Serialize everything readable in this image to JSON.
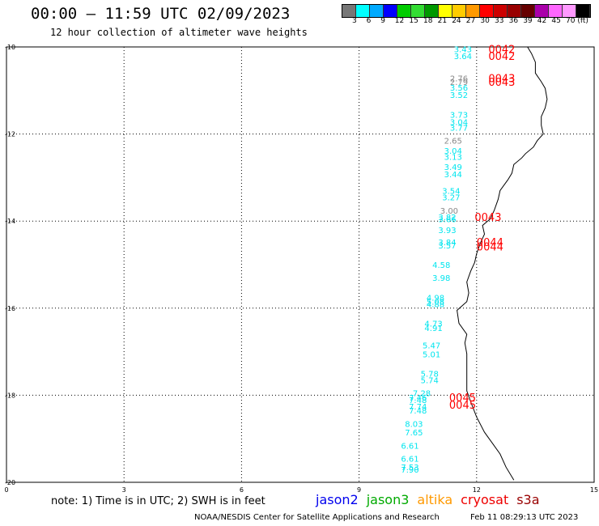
{
  "header": {
    "title": "00:00 — 11:59 UTC 02/09/2023",
    "subtitle": "12 hour collection of altimeter wave heights"
  },
  "colorbar": {
    "colors": [
      "#777777",
      "#00ffff",
      "#00aaff",
      "#0000ff",
      "#00cc00",
      "#33dd33",
      "#009900",
      "#ffff00",
      "#ffcc00",
      "#ff9900",
      "#ff0000",
      "#cc0000",
      "#990000",
      "#660000",
      "#aa00aa",
      "#ff66ff",
      "#ff99ff",
      "#000000"
    ],
    "labels": [
      "3",
      "6",
      "9",
      "12",
      "15",
      "18",
      "21",
      "24",
      "27",
      "30",
      "33",
      "36",
      "39",
      "42",
      "45",
      "70 (ft)"
    ]
  },
  "map": {
    "lat_labels": [
      "-10",
      "-12",
      "-14",
      "-16",
      "-18",
      "-20"
    ],
    "lon_labels": [
      "0",
      "3",
      "6",
      "9",
      "12",
      "15"
    ],
    "lat_range": [
      -20,
      -10
    ],
    "lon_range": [
      0,
      15
    ],
    "measurements": [
      {
        "lon": 11.65,
        "lat": -10.05,
        "text": "3.43",
        "color": "#00e5ee"
      },
      {
        "lon": 11.65,
        "lat": -10.2,
        "text": "3.64",
        "color": "#00e5ee"
      },
      {
        "lon": 11.55,
        "lat": -10.72,
        "text": "2.76",
        "color": "#888888"
      },
      {
        "lon": 11.55,
        "lat": -10.8,
        "text": "2.79",
        "color": "#888888"
      },
      {
        "lon": 11.55,
        "lat": -10.93,
        "text": "3.56",
        "color": "#00e5ee"
      },
      {
        "lon": 11.55,
        "lat": -11.1,
        "text": "3.52",
        "color": "#00e5ee"
      },
      {
        "lon": 11.55,
        "lat": -11.55,
        "text": "3.73",
        "color": "#00e5ee"
      },
      {
        "lon": 11.55,
        "lat": -11.72,
        "text": "3.04",
        "color": "#00e5ee"
      },
      {
        "lon": 11.55,
        "lat": -11.85,
        "text": "3.77",
        "color": "#00e5ee"
      },
      {
        "lon": 11.4,
        "lat": -12.15,
        "text": "2.65",
        "color": "#888888"
      },
      {
        "lon": 11.4,
        "lat": -12.38,
        "text": "3.04",
        "color": "#00e5ee"
      },
      {
        "lon": 11.4,
        "lat": -12.52,
        "text": "3.13",
        "color": "#00e5ee"
      },
      {
        "lon": 11.4,
        "lat": -12.75,
        "text": "3.49",
        "color": "#00e5ee"
      },
      {
        "lon": 11.4,
        "lat": -12.92,
        "text": "3.44",
        "color": "#00e5ee"
      },
      {
        "lon": 11.35,
        "lat": -13.3,
        "text": "3.54",
        "color": "#00e5ee"
      },
      {
        "lon": 11.35,
        "lat": -13.45,
        "text": "3.27",
        "color": "#00e5ee"
      },
      {
        "lon": 11.3,
        "lat": -13.75,
        "text": "3.00",
        "color": "#888888"
      },
      {
        "lon": 11.25,
        "lat": -13.9,
        "text": "3.82",
        "color": "#00e5ee"
      },
      {
        "lon": 11.25,
        "lat": -13.95,
        "text": "3.66",
        "color": "#00e5ee"
      },
      {
        "lon": 11.25,
        "lat": -14.2,
        "text": "3.93",
        "color": "#00e5ee"
      },
      {
        "lon": 11.25,
        "lat": -14.48,
        "text": "3.84",
        "color": "#00e5ee"
      },
      {
        "lon": 11.25,
        "lat": -14.55,
        "text": "3.57",
        "color": "#00e5ee"
      },
      {
        "lon": 11.1,
        "lat": -15.0,
        "text": "4.58",
        "color": "#00e5ee"
      },
      {
        "lon": 11.1,
        "lat": -15.3,
        "text": "3.98",
        "color": "#00e5ee"
      },
      {
        "lon": 10.95,
        "lat": -15.75,
        "text": "4.98",
        "color": "#00e5ee"
      },
      {
        "lon": 10.95,
        "lat": -15.85,
        "text": "5.08",
        "color": "#00e5ee"
      },
      {
        "lon": 10.95,
        "lat": -15.9,
        "text": "4.88",
        "color": "#00e5ee"
      },
      {
        "lon": 10.9,
        "lat": -16.35,
        "text": "4.73",
        "color": "#00e5ee"
      },
      {
        "lon": 10.9,
        "lat": -16.45,
        "text": "4.91",
        "color": "#00e5ee"
      },
      {
        "lon": 10.85,
        "lat": -16.85,
        "text": "5.47",
        "color": "#00e5ee"
      },
      {
        "lon": 10.85,
        "lat": -17.05,
        "text": "5.01",
        "color": "#00e5ee"
      },
      {
        "lon": 10.8,
        "lat": -17.5,
        "text": "5.78",
        "color": "#00e5ee"
      },
      {
        "lon": 10.8,
        "lat": -17.65,
        "text": "5.74",
        "color": "#00e5ee"
      },
      {
        "lon": 10.6,
        "lat": -17.95,
        "text": "7.28",
        "color": "#00e5ee"
      },
      {
        "lon": 10.5,
        "lat": -18.05,
        "text": "7.46",
        "color": "#00e5ee"
      },
      {
        "lon": 10.5,
        "lat": -18.1,
        "text": "7.48",
        "color": "#00e5ee"
      },
      {
        "lon": 10.5,
        "lat": -18.25,
        "text": "7.74",
        "color": "#00e5ee"
      },
      {
        "lon": 10.5,
        "lat": -18.35,
        "text": "7.48",
        "color": "#00e5ee"
      },
      {
        "lon": 10.4,
        "lat": -18.65,
        "text": "8.03",
        "color": "#00e5ee"
      },
      {
        "lon": 10.4,
        "lat": -18.85,
        "text": "7.65",
        "color": "#00e5ee"
      },
      {
        "lon": 10.3,
        "lat": -19.15,
        "text": "6.61",
        "color": "#00e5ee"
      },
      {
        "lon": 10.3,
        "lat": -19.45,
        "text": "6.61",
        "color": "#00e5ee"
      },
      {
        "lon": 10.3,
        "lat": -19.65,
        "text": "7.53",
        "color": "#00e5ee"
      },
      {
        "lon": 10.3,
        "lat": -19.7,
        "text": "7.90",
        "color": "#00e5ee"
      }
    ],
    "tracks": [
      {
        "lon": 12.3,
        "lat": -10.05,
        "text": "0042",
        "color": "#ff0000"
      },
      {
        "lon": 12.3,
        "lat": -10.2,
        "text": "0042",
        "color": "#ff0000"
      },
      {
        "lon": 12.3,
        "lat": -10.72,
        "text": "0043",
        "color": "#ff0000"
      },
      {
        "lon": 12.3,
        "lat": -10.8,
        "text": "0043",
        "color": "#ff0000"
      },
      {
        "lon": 11.95,
        "lat": -13.9,
        "text": "0043",
        "color": "#ff0000"
      },
      {
        "lon": 12.0,
        "lat": -14.48,
        "text": "0044",
        "color": "#ff0000"
      },
      {
        "lon": 12.0,
        "lat": -14.58,
        "text": "0044",
        "color": "#ff0000"
      },
      {
        "lon": 11.3,
        "lat": -18.05,
        "text": "0045",
        "color": "#ff0000"
      },
      {
        "lon": 11.3,
        "lat": -18.22,
        "text": "0045",
        "color": "#ff0000"
      }
    ],
    "coastline": [
      [
        13.3,
        -10.0
      ],
      [
        13.4,
        -10.15
      ],
      [
        13.5,
        -10.35
      ],
      [
        13.5,
        -10.6
      ],
      [
        13.65,
        -10.8
      ],
      [
        13.75,
        -10.95
      ],
      [
        13.8,
        -11.2
      ],
      [
        13.75,
        -11.4
      ],
      [
        13.65,
        -11.6
      ],
      [
        13.65,
        -11.8
      ],
      [
        13.7,
        -12.0
      ],
      [
        13.55,
        -12.15
      ],
      [
        13.45,
        -12.3
      ],
      [
        13.25,
        -12.45
      ],
      [
        13.15,
        -12.55
      ],
      [
        12.95,
        -12.7
      ],
      [
        12.9,
        -12.9
      ],
      [
        12.8,
        -13.05
      ],
      [
        12.6,
        -13.3
      ],
      [
        12.55,
        -13.5
      ],
      [
        12.45,
        -13.75
      ],
      [
        12.35,
        -13.95
      ],
      [
        12.15,
        -14.1
      ],
      [
        12.2,
        -14.3
      ],
      [
        12.1,
        -14.5
      ],
      [
        12.0,
        -14.75
      ],
      [
        11.95,
        -14.95
      ],
      [
        11.85,
        -15.15
      ],
      [
        11.75,
        -15.4
      ],
      [
        11.8,
        -15.65
      ],
      [
        11.75,
        -15.85
      ],
      [
        11.5,
        -16.05
      ],
      [
        11.55,
        -16.35
      ],
      [
        11.75,
        -16.6
      ],
      [
        11.7,
        -16.8
      ],
      [
        11.75,
        -17.05
      ],
      [
        11.75,
        -17.3
      ],
      [
        11.75,
        -17.6
      ],
      [
        11.75,
        -17.9
      ],
      [
        11.85,
        -18.15
      ],
      [
        12.0,
        -18.5
      ],
      [
        12.2,
        -18.85
      ],
      [
        12.4,
        -19.1
      ],
      [
        12.6,
        -19.35
      ],
      [
        12.75,
        -19.65
      ],
      [
        12.95,
        -19.95
      ]
    ]
  },
  "footer": {
    "note": "note: 1) Time is in UTC; 2) SWH is in feet",
    "legend": [
      {
        "label": "jason2",
        "color": "#0000ee"
      },
      {
        "label": "jason3",
        "color": "#00aa00"
      },
      {
        "label": "altika",
        "color": "#ff9900"
      },
      {
        "label": "cryosat",
        "color": "#ee0000"
      },
      {
        "label": "s3a",
        "color": "#990000"
      }
    ],
    "credit": "NOAA/NESDIS Center for Satellite Applications and Research",
    "timestamp": "Feb 11 08:29:13 UTC 2023"
  }
}
